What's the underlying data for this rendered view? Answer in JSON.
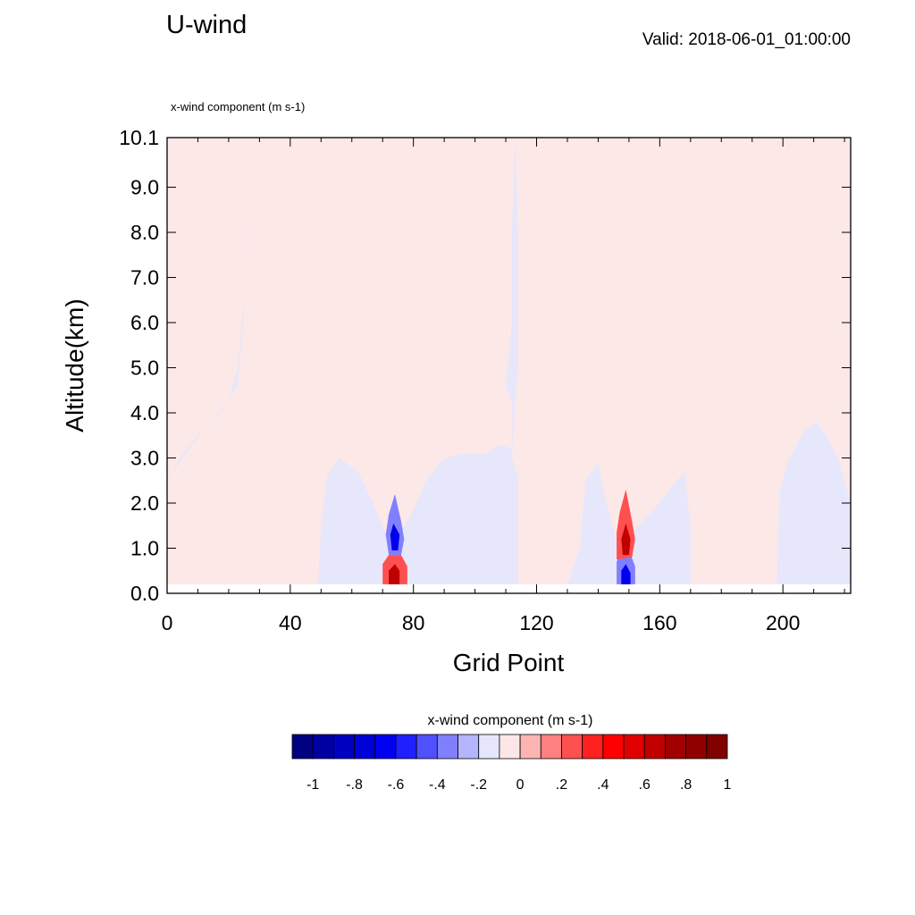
{
  "header": {
    "title": "U-wind",
    "valid": "Valid: 2018-06-01_01:00:00",
    "field": "x-wind component   (m s-1)"
  },
  "colors": {
    "neg_weak": "#e6e7fb",
    "pos_weak": "#fde8e8",
    "frame": "#000000"
  },
  "chart_data": {
    "type": "heatmap",
    "title": "U-wind",
    "xlabel": "Grid Point",
    "ylabel": "Altitude(km)",
    "xlim": [
      0,
      222
    ],
    "ylim": [
      0,
      10.1
    ],
    "x_ticks": [
      0,
      40,
      80,
      120,
      160,
      200
    ],
    "x_tick_labels": [
      "0",
      "40",
      "80",
      "120",
      "160",
      "200"
    ],
    "y_ticks": [
      0,
      1,
      2,
      3,
      4,
      5,
      6,
      7,
      8,
      9,
      10.1
    ],
    "y_tick_labels": [
      "0.0",
      "1.0",
      "2.0",
      "3.0",
      "4.0",
      "5.0",
      "6.0",
      "7.0",
      "8.0",
      "9.0",
      "10.1"
    ],
    "data_bottom_km": 0.2,
    "regions": [
      {
        "sign": "negative",
        "level": -0.1,
        "boundary": [
          [
            24,
            10.1
          ],
          [
            113,
            10.1
          ],
          [
            114,
            8
          ],
          [
            114,
            5
          ],
          [
            113,
            4.2
          ],
          [
            112,
            3
          ],
          [
            114,
            2.6
          ],
          [
            114,
            0.2
          ],
          [
            130,
            0.2
          ],
          [
            134,
            1
          ],
          [
            136,
            2.5
          ],
          [
            140,
            2.9
          ],
          [
            143,
            1.9
          ],
          [
            146,
            1.2
          ],
          [
            150,
            1.3
          ],
          [
            156,
            1.7
          ],
          [
            162,
            2.2
          ],
          [
            168,
            2.7
          ],
          [
            170,
            1.5
          ],
          [
            170,
            0.2
          ],
          [
            49,
            0.2
          ],
          [
            50,
            1.5
          ],
          [
            52,
            2.6
          ],
          [
            56,
            3
          ],
          [
            62,
            2.7
          ],
          [
            67,
            2
          ],
          [
            71,
            1.3
          ],
          [
            75,
            1.3
          ],
          [
            79,
            1.7
          ],
          [
            84,
            2.5
          ],
          [
            90,
            3
          ],
          [
            96,
            3.1
          ],
          [
            104,
            3.1
          ],
          [
            108,
            3.3
          ],
          [
            112,
            3.2
          ],
          [
            112,
            4.2
          ],
          [
            110,
            4.6
          ],
          [
            112,
            6
          ],
          [
            112,
            8
          ],
          [
            113,
            10.1
          ],
          [
            113,
            10.1
          ],
          [
            24,
            10.1
          ],
          [
            25,
            6.2
          ],
          [
            23,
            4.6
          ],
          [
            17,
            4
          ],
          [
            10,
            3.5
          ],
          [
            4,
            3
          ],
          [
            0,
            2.5
          ],
          [
            0,
            0.2
          ],
          [
            49,
            0.2
          ],
          [
            28,
            0.2
          ],
          [
            0,
            0.2
          ],
          [
            0,
            2.5
          ],
          [
            6,
            3.1
          ],
          [
            14,
            3.8
          ],
          [
            20,
            4.3
          ],
          [
            23,
            5
          ],
          [
            25,
            6.5
          ],
          [
            24,
            10.1
          ]
        ]
      },
      {
        "sign": "negative",
        "level": -0.1,
        "boundary": [
          [
            198,
            0.2
          ],
          [
            199,
            2.3
          ],
          [
            202,
            3
          ],
          [
            207,
            3.6
          ],
          [
            211,
            3.8
          ],
          [
            214,
            3.5
          ],
          [
            218,
            3
          ],
          [
            222,
            2
          ],
          [
            222,
            0.2
          ]
        ]
      },
      {
        "sign": "negative",
        "level": -0.3,
        "boundary": [
          [
            72,
            0.85
          ],
          [
            71,
            1.3
          ],
          [
            72,
            1.75
          ],
          [
            74,
            2.2
          ],
          [
            76,
            1.6
          ],
          [
            77,
            1.2
          ],
          [
            76,
            0.85
          ]
        ]
      },
      {
        "sign": "negative",
        "level": -0.6,
        "boundary": [
          [
            73,
            0.95
          ],
          [
            72.5,
            1.3
          ],
          [
            73.5,
            1.55
          ],
          [
            75.5,
            1.3
          ],
          [
            75,
            0.95
          ]
        ]
      },
      {
        "sign": "negative",
        "level": -0.3,
        "boundary": [
          [
            146,
            0.2
          ],
          [
            146,
            0.7
          ],
          [
            148,
            1.0
          ],
          [
            150,
            0.95
          ],
          [
            152,
            0.6
          ],
          [
            152,
            0.2
          ]
        ]
      },
      {
        "sign": "negative",
        "level": -0.6,
        "boundary": [
          [
            147.5,
            0.2
          ],
          [
            147.5,
            0.5
          ],
          [
            149,
            0.65
          ],
          [
            150.5,
            0.45
          ],
          [
            150.5,
            0.2
          ]
        ]
      },
      {
        "sign": "positive",
        "level": 0.3,
        "boundary": [
          [
            70,
            0.2
          ],
          [
            70,
            0.65
          ],
          [
            72,
            0.85
          ],
          [
            76,
            0.85
          ],
          [
            78,
            0.6
          ],
          [
            78,
            0.2
          ]
        ]
      },
      {
        "sign": "positive",
        "level": 0.7,
        "boundary": [
          [
            72,
            0.2
          ],
          [
            72,
            0.5
          ],
          [
            74,
            0.65
          ],
          [
            75.5,
            0.5
          ],
          [
            75.5,
            0.2
          ]
        ]
      },
      {
        "sign": "positive",
        "level": 0.3,
        "boundary": [
          [
            146,
            0.75
          ],
          [
            146,
            1.35
          ],
          [
            147,
            1.8
          ],
          [
            149,
            2.3
          ],
          [
            151,
            1.6
          ],
          [
            152,
            1.2
          ],
          [
            151,
            0.8
          ]
        ]
      },
      {
        "sign": "positive",
        "level": 0.7,
        "boundary": [
          [
            148,
            0.85
          ],
          [
            147.5,
            1.2
          ],
          [
            149,
            1.55
          ],
          [
            150.5,
            1.2
          ],
          [
            150,
            0.85
          ]
        ]
      }
    ],
    "colorbar": {
      "title": "x-wind component  (m s-1)",
      "colors": [
        "#000080",
        "#0000a0",
        "#0000c0",
        "#0000d8",
        "#0000f0",
        "#2020ff",
        "#5050ff",
        "#8080ff",
        "#b4b4ff",
        "#e6e6fb",
        "#fde6e6",
        "#ffb4b4",
        "#ff8080",
        "#ff5050",
        "#ff2020",
        "#ff0000",
        "#e00000",
        "#c00000",
        "#a00000",
        "#900000",
        "#800000"
      ],
      "tick_labels": [
        "-1",
        "-.8",
        "-.6",
        "-.4",
        "-.2",
        "0",
        ".2",
        ".4",
        ".6",
        ".8",
        "1"
      ]
    }
  }
}
